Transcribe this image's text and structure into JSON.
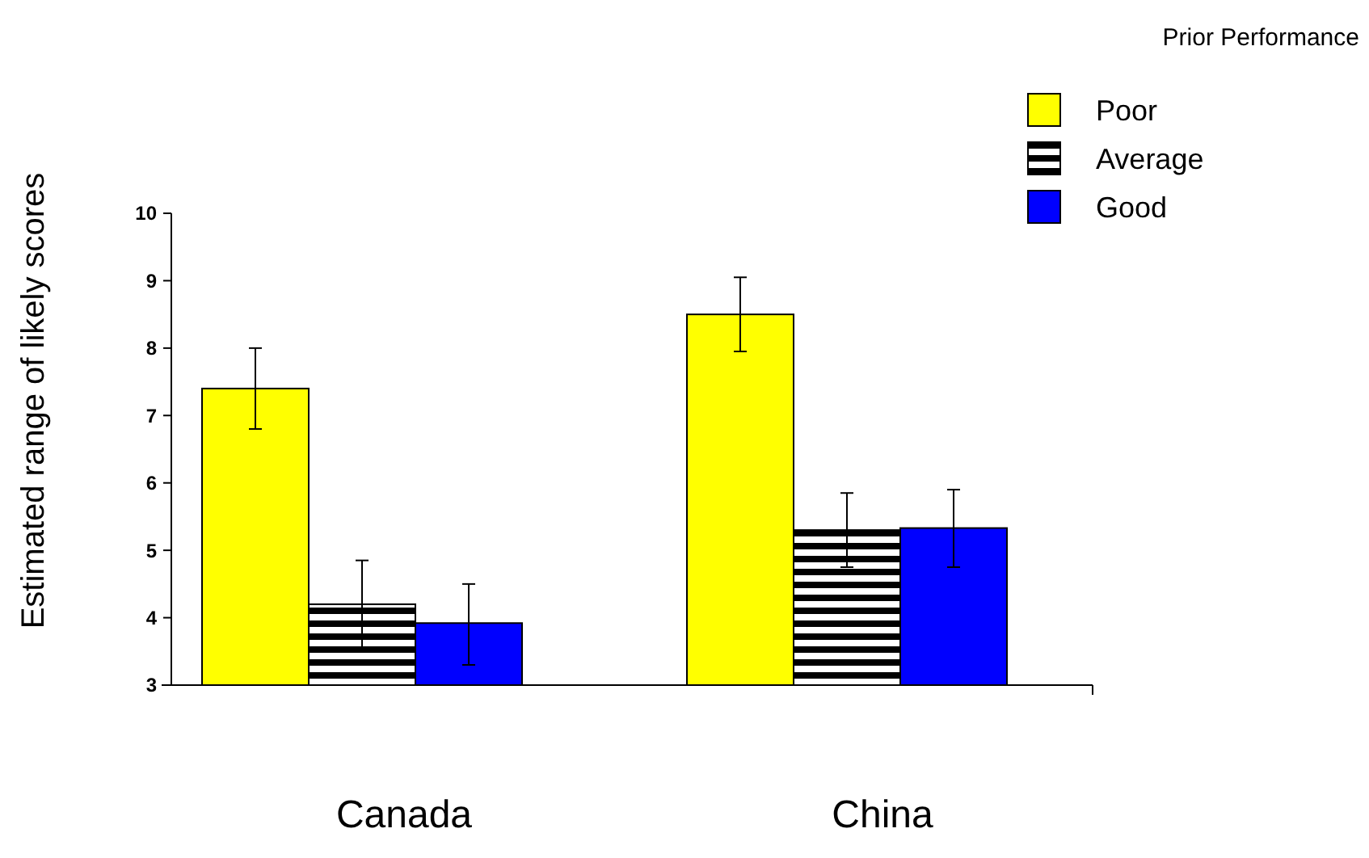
{
  "chart_data": {
    "type": "bar",
    "ylabel": "Estimated range of likely scores",
    "legend_title": "Prior Performance",
    "categories": [
      "Canada",
      "China"
    ],
    "series": [
      {
        "name": "Poor",
        "color": "#ffff00",
        "values": [
          7.4,
          8.5
        ],
        "errors": [
          [
            6.8,
            8.0
          ],
          [
            7.95,
            9.05
          ]
        ]
      },
      {
        "name": "Average",
        "color": "#000000",
        "values": [
          4.2,
          5.3
        ],
        "errors": [
          [
            3.55,
            4.85
          ],
          [
            4.75,
            5.85
          ]
        ]
      },
      {
        "name": "Good",
        "color": "#0000ff",
        "values": [
          3.92,
          5.33
        ],
        "errors": [
          [
            3.3,
            4.5
          ],
          [
            4.75,
            5.9
          ]
        ]
      }
    ],
    "ylim": [
      3,
      10
    ],
    "yticks": [
      3,
      4,
      5,
      6,
      7,
      8,
      9,
      10
    ],
    "grid": false,
    "legend": "top right"
  }
}
